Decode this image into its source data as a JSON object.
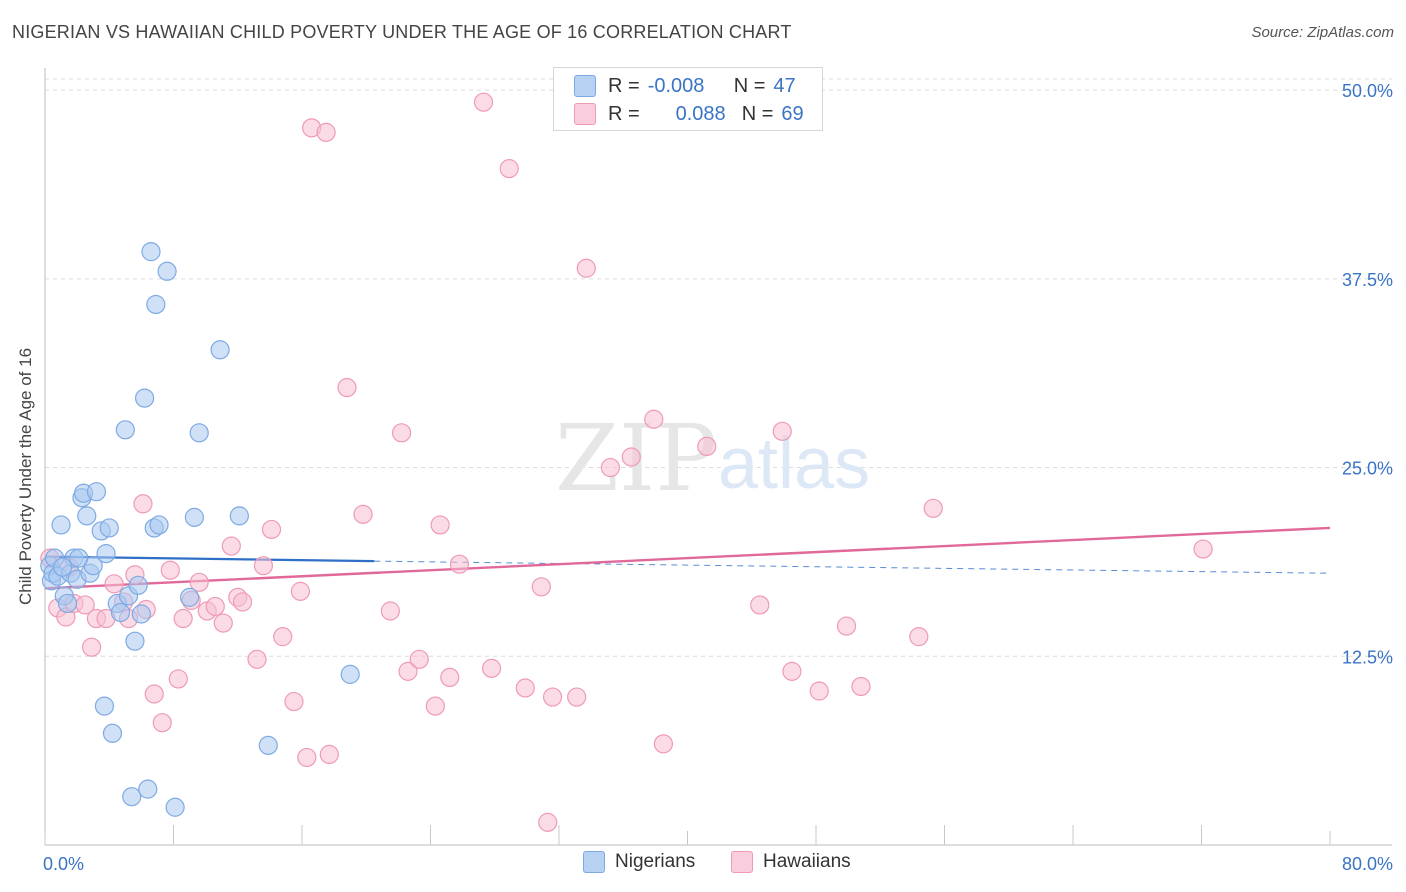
{
  "title": "NIGERIAN VS HAWAIIAN CHILD POVERTY UNDER THE AGE OF 16 CORRELATION CHART",
  "source": "Source: ZipAtlas.com",
  "watermark": {
    "zip": "ZIP",
    "atlas": "atlas"
  },
  "legend": {
    "rows": [
      {
        "r_label": "R =",
        "r_value": "-0.008",
        "n_label": "N =",
        "n_value": "47"
      },
      {
        "r_label": "R =",
        "r_value": "0.088",
        "n_label": "N =",
        "n_value": "69"
      }
    ]
  },
  "colors": {
    "nigerians_fill": "#a9c8f0",
    "nigerians_stroke": "#7eaae3",
    "nigerians_line": "#2f6fc7",
    "hawaiians_fill": "#f7bfd1",
    "hawaiians_stroke": "#ee9ab7",
    "hawaiians_line": "#e0699a",
    "axis_text": "#3a74c5",
    "grid": "#dcdcdc"
  },
  "chart_data": {
    "type": "scatter",
    "title": "NIGERIAN VS HAWAIIAN CHILD POVERTY UNDER THE AGE OF 16 CORRELATION CHART",
    "xlabel": "",
    "ylabel": "Child Poverty Under the Age of 16",
    "xlim": [
      0,
      80
    ],
    "ylim": [
      0,
      51
    ],
    "x_tick_labels": [
      "0.0%",
      "80.0%"
    ],
    "y_ticks": [
      12.5,
      25.0,
      37.5,
      50.0
    ],
    "y_tick_labels": [
      "12.5%",
      "25.0%",
      "37.5%",
      "50.0%"
    ],
    "grid": true,
    "legend_position": "top-center",
    "series": [
      {
        "name": "Nigerians",
        "R": -0.008,
        "N": 47,
        "trend": {
          "x0": 0,
          "y0": 19.1,
          "x1": 20.5,
          "y1": 18.8,
          "dashed_to_x": 80,
          "dashed_to_y": 18.0
        },
        "points": [
          [
            0.3,
            18.5
          ],
          [
            0.4,
            17.5
          ],
          [
            0.5,
            18.0
          ],
          [
            0.6,
            19.0
          ],
          [
            0.8,
            17.8
          ],
          [
            1.0,
            21.2
          ],
          [
            1.2,
            16.5
          ],
          [
            1.4,
            16.0
          ],
          [
            1.6,
            18.0
          ],
          [
            1.8,
            19.0
          ],
          [
            2.0,
            17.6
          ],
          [
            2.3,
            23.0
          ],
          [
            2.4,
            23.3
          ],
          [
            2.6,
            21.8
          ],
          [
            2.8,
            18.0
          ],
          [
            3.0,
            18.5
          ],
          [
            3.2,
            23.4
          ],
          [
            3.5,
            20.8
          ],
          [
            3.8,
            19.3
          ],
          [
            4.0,
            21.0
          ],
          [
            4.2,
            7.4
          ],
          [
            4.5,
            16.0
          ],
          [
            4.7,
            15.4
          ],
          [
            5.0,
            27.5
          ],
          [
            5.2,
            16.5
          ],
          [
            5.4,
            3.2
          ],
          [
            5.6,
            13.5
          ],
          [
            5.8,
            17.2
          ],
          [
            6.0,
            15.3
          ],
          [
            6.2,
            29.6
          ],
          [
            6.4,
            3.7
          ],
          [
            6.6,
            39.3
          ],
          [
            6.8,
            21.0
          ],
          [
            6.9,
            35.8
          ],
          [
            7.1,
            21.2
          ],
          [
            7.6,
            38.0
          ],
          [
            8.1,
            2.5
          ],
          [
            9.0,
            16.4
          ],
          [
            9.3,
            21.7
          ],
          [
            9.6,
            27.3
          ],
          [
            10.9,
            32.8
          ],
          [
            12.1,
            21.8
          ],
          [
            13.9,
            6.6
          ],
          [
            19.0,
            11.3
          ],
          [
            3.7,
            9.2
          ],
          [
            1.1,
            18.4
          ],
          [
            2.1,
            19.0
          ]
        ]
      },
      {
        "name": "Hawaiians",
        "R": 0.088,
        "N": 69,
        "trend": {
          "x0": 0,
          "y0": 17.0,
          "x1": 80,
          "y1": 21.0
        },
        "points": [
          [
            0.3,
            19.0
          ],
          [
            0.8,
            15.7
          ],
          [
            1.3,
            15.1
          ],
          [
            1.5,
            18.4
          ],
          [
            1.8,
            16.0
          ],
          [
            2.5,
            15.9
          ],
          [
            2.9,
            13.1
          ],
          [
            3.2,
            15.0
          ],
          [
            3.8,
            15.0
          ],
          [
            4.3,
            17.3
          ],
          [
            4.9,
            16.1
          ],
          [
            5.2,
            15.0
          ],
          [
            5.6,
            17.9
          ],
          [
            6.1,
            22.6
          ],
          [
            6.3,
            15.6
          ],
          [
            6.8,
            10.0
          ],
          [
            7.3,
            8.1
          ],
          [
            7.8,
            18.2
          ],
          [
            8.3,
            11.0
          ],
          [
            8.6,
            15.0
          ],
          [
            9.1,
            16.2
          ],
          [
            9.6,
            17.4
          ],
          [
            10.1,
            15.5
          ],
          [
            10.6,
            15.8
          ],
          [
            11.1,
            14.7
          ],
          [
            11.6,
            19.8
          ],
          [
            12.0,
            16.4
          ],
          [
            12.3,
            16.1
          ],
          [
            13.2,
            12.3
          ],
          [
            13.6,
            18.5
          ],
          [
            14.1,
            20.9
          ],
          [
            14.8,
            13.8
          ],
          [
            15.5,
            9.5
          ],
          [
            15.9,
            16.8
          ],
          [
            16.3,
            5.8
          ],
          [
            16.6,
            47.5
          ],
          [
            17.5,
            47.2
          ],
          [
            17.7,
            6.0
          ],
          [
            18.8,
            30.3
          ],
          [
            19.8,
            21.9
          ],
          [
            21.5,
            15.5
          ],
          [
            22.2,
            27.3
          ],
          [
            22.6,
            11.5
          ],
          [
            23.3,
            12.3
          ],
          [
            24.3,
            9.2
          ],
          [
            24.6,
            21.2
          ],
          [
            25.2,
            11.1
          ],
          [
            25.8,
            18.6
          ],
          [
            27.3,
            49.2
          ],
          [
            27.8,
            11.7
          ],
          [
            28.9,
            44.8
          ],
          [
            29.9,
            10.4
          ],
          [
            30.9,
            17.1
          ],
          [
            31.3,
            1.5
          ],
          [
            31.6,
            9.8
          ],
          [
            33.1,
            9.8
          ],
          [
            33.7,
            38.2
          ],
          [
            35.2,
            25.0
          ],
          [
            36.5,
            25.7
          ],
          [
            37.9,
            28.2
          ],
          [
            38.5,
            6.7
          ],
          [
            41.2,
            26.4
          ],
          [
            44.5,
            15.9
          ],
          [
            45.9,
            27.4
          ],
          [
            46.5,
            11.5
          ],
          [
            48.2,
            10.2
          ],
          [
            49.9,
            14.5
          ],
          [
            50.8,
            10.5
          ],
          [
            54.4,
            13.8
          ]
        ]
      }
    ],
    "extra_points_hawaiians": [
      [
        55.3,
        22.3
      ],
      [
        72.1,
        19.6
      ]
    ]
  },
  "bottom_legend": [
    {
      "label": "Nigerians"
    },
    {
      "label": "Hawaiians"
    }
  ]
}
